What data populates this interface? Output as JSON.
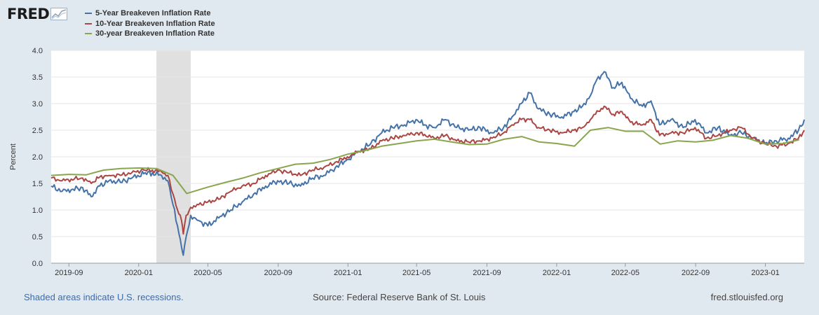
{
  "header": {
    "logo_text": "FRED",
    "logo_icon": "fred-graph-icon"
  },
  "colors": {
    "background": "#e1e9f0",
    "plot_background": "#ffffff",
    "grid": "#e6e6e6",
    "recession": "#e0e0e0",
    "series_5yr": "#4572a7",
    "series_10yr": "#aa4643",
    "series_30yr": "#89a54e"
  },
  "footer": {
    "recession_note": "Shaded areas indicate U.S. recessions.",
    "source": "Source: Federal Reserve Bank of St. Louis",
    "site": "fred.stlouisfed.org"
  },
  "chart_data": {
    "type": "line",
    "ylabel": "Percent",
    "ylim": [
      0,
      4
    ],
    "yticks": [
      "0.0",
      "0.5",
      "1.0",
      "1.5",
      "2.0",
      "2.5",
      "3.0",
      "3.5",
      "4.0"
    ],
    "xlim": [
      "2019-08-01",
      "2023-03-10"
    ],
    "xticks": [
      {
        "date": "2019-09-01",
        "label": "2019-09"
      },
      {
        "date": "2020-01-01",
        "label": "2020-01"
      },
      {
        "date": "2020-05-01",
        "label": "2020-05"
      },
      {
        "date": "2020-09-01",
        "label": "2020-09"
      },
      {
        "date": "2021-01-01",
        "label": "2021-01"
      },
      {
        "date": "2021-05-01",
        "label": "2021-05"
      },
      {
        "date": "2021-09-01",
        "label": "2021-09"
      },
      {
        "date": "2022-01-01",
        "label": "2022-01"
      },
      {
        "date": "2022-05-01",
        "label": "2022-05"
      },
      {
        "date": "2022-09-01",
        "label": "2022-09"
      },
      {
        "date": "2023-01-01",
        "label": "2023-01"
      }
    ],
    "grid": true,
    "legend_position": "top-left",
    "recessions": [
      {
        "start": "2020-02-01",
        "end": "2020-04-01"
      }
    ],
    "series": [
      {
        "name": "5-Year Breakeven Inflation Rate",
        "color": "#4572a7",
        "x": [
          "2019-08-01",
          "2019-08-20",
          "2019-09-05",
          "2019-09-25",
          "2019-10-10",
          "2019-10-25",
          "2019-11-10",
          "2019-11-30",
          "2019-12-20",
          "2020-01-10",
          "2020-01-25",
          "2020-02-10",
          "2020-02-21",
          "2020-03-01",
          "2020-03-09",
          "2020-03-16",
          "2020-03-19",
          "2020-03-24",
          "2020-04-01",
          "2020-04-15",
          "2020-05-01",
          "2020-05-20",
          "2020-06-10",
          "2020-06-30",
          "2020-07-20",
          "2020-08-10",
          "2020-08-31",
          "2020-09-20",
          "2020-10-10",
          "2020-10-31",
          "2020-11-20",
          "2020-12-10",
          "2020-12-31",
          "2021-01-20",
          "2021-02-10",
          "2021-03-01",
          "2021-03-20",
          "2021-04-10",
          "2021-04-30",
          "2021-05-15",
          "2021-06-01",
          "2021-06-20",
          "2021-07-10",
          "2021-07-31",
          "2021-08-20",
          "2021-09-10",
          "2021-09-30",
          "2021-10-15",
          "2021-10-31",
          "2021-11-15",
          "2021-11-30",
          "2021-12-20",
          "2022-01-10",
          "2022-01-31",
          "2022-02-15",
          "2022-03-01",
          "2022-03-10",
          "2022-03-25",
          "2022-04-10",
          "2022-04-25",
          "2022-05-10",
          "2022-05-31",
          "2022-06-15",
          "2022-06-30",
          "2022-07-20",
          "2022-08-10",
          "2022-08-31",
          "2022-09-20",
          "2022-10-10",
          "2022-10-31",
          "2022-11-20",
          "2022-12-10",
          "2022-12-31",
          "2023-01-20",
          "2023-02-10",
          "2023-02-28",
          "2023-03-10"
        ],
        "values": [
          1.45,
          1.35,
          1.38,
          1.42,
          1.25,
          1.45,
          1.55,
          1.52,
          1.6,
          1.68,
          1.7,
          1.65,
          1.55,
          1.1,
          0.7,
          0.3,
          0.15,
          0.5,
          0.9,
          0.8,
          0.7,
          0.85,
          1.0,
          1.15,
          1.3,
          1.45,
          1.55,
          1.5,
          1.45,
          1.6,
          1.65,
          1.8,
          1.95,
          2.1,
          2.25,
          2.45,
          2.55,
          2.6,
          2.7,
          2.6,
          2.55,
          2.7,
          2.55,
          2.5,
          2.55,
          2.45,
          2.55,
          2.75,
          3.0,
          3.2,
          2.9,
          2.8,
          2.75,
          2.85,
          2.95,
          3.15,
          3.4,
          3.6,
          3.3,
          3.4,
          3.1,
          2.95,
          3.05,
          2.6,
          2.7,
          2.55,
          2.7,
          2.45,
          2.55,
          2.4,
          2.45,
          2.35,
          2.25,
          2.3,
          2.35,
          2.5,
          2.7
        ]
      },
      {
        "name": "10-Year Breakeven Inflation Rate",
        "color": "#aa4643",
        "x": [
          "2019-08-01",
          "2019-08-20",
          "2019-09-05",
          "2019-09-25",
          "2019-10-10",
          "2019-10-25",
          "2019-11-10",
          "2019-11-30",
          "2019-12-20",
          "2020-01-10",
          "2020-01-25",
          "2020-02-10",
          "2020-02-21",
          "2020-03-01",
          "2020-03-09",
          "2020-03-16",
          "2020-03-19",
          "2020-03-24",
          "2020-04-01",
          "2020-04-15",
          "2020-05-01",
          "2020-05-20",
          "2020-06-10",
          "2020-06-30",
          "2020-07-20",
          "2020-08-10",
          "2020-08-31",
          "2020-09-20",
          "2020-10-10",
          "2020-10-31",
          "2020-11-20",
          "2020-12-10",
          "2020-12-31",
          "2021-01-20",
          "2021-02-10",
          "2021-03-01",
          "2021-03-20",
          "2021-04-10",
          "2021-04-30",
          "2021-05-15",
          "2021-06-01",
          "2021-06-20",
          "2021-07-10",
          "2021-07-31",
          "2021-08-20",
          "2021-09-10",
          "2021-09-30",
          "2021-10-15",
          "2021-10-31",
          "2021-11-15",
          "2021-11-30",
          "2021-12-20",
          "2022-01-10",
          "2022-01-31",
          "2022-02-15",
          "2022-03-01",
          "2022-03-10",
          "2022-03-25",
          "2022-04-10",
          "2022-04-25",
          "2022-05-10",
          "2022-05-31",
          "2022-06-15",
          "2022-06-30",
          "2022-07-20",
          "2022-08-10",
          "2022-08-31",
          "2022-09-20",
          "2022-10-10",
          "2022-10-31",
          "2022-11-20",
          "2022-12-10",
          "2022-12-31",
          "2023-01-20",
          "2023-02-10",
          "2023-02-28",
          "2023-03-10"
        ],
        "values": [
          1.6,
          1.55,
          1.58,
          1.6,
          1.5,
          1.62,
          1.65,
          1.65,
          1.7,
          1.75,
          1.75,
          1.72,
          1.65,
          1.3,
          1.0,
          0.8,
          0.55,
          0.9,
          1.05,
          1.1,
          1.15,
          1.2,
          1.35,
          1.45,
          1.5,
          1.65,
          1.75,
          1.7,
          1.65,
          1.75,
          1.8,
          1.9,
          2.0,
          2.1,
          2.15,
          2.3,
          2.35,
          2.4,
          2.45,
          2.42,
          2.35,
          2.4,
          2.3,
          2.28,
          2.3,
          2.35,
          2.45,
          2.6,
          2.7,
          2.7,
          2.55,
          2.5,
          2.45,
          2.5,
          2.55,
          2.7,
          2.8,
          2.95,
          2.8,
          2.85,
          2.65,
          2.6,
          2.7,
          2.4,
          2.45,
          2.45,
          2.55,
          2.35,
          2.4,
          2.5,
          2.55,
          2.35,
          2.25,
          2.2,
          2.25,
          2.35,
          2.5
        ]
      },
      {
        "name": "30-year Breakeven Inflation Rate",
        "color": "#89a54e",
        "x": [
          "2019-08-01",
          "2019-09-01",
          "2019-10-01",
          "2019-11-01",
          "2019-12-01",
          "2020-01-01",
          "2020-02-01",
          "2020-03-01",
          "2020-03-25",
          "2020-05-01",
          "2020-06-01",
          "2020-07-01",
          "2020-08-01",
          "2020-09-01",
          "2020-10-01",
          "2020-11-01",
          "2020-12-01",
          "2021-01-01",
          "2021-02-01",
          "2021-03-01",
          "2021-04-01",
          "2021-05-01",
          "2021-06-01",
          "2021-07-01",
          "2021-08-01",
          "2021-09-01",
          "2021-10-01",
          "2021-11-01",
          "2021-12-01",
          "2022-01-01",
          "2022-02-01",
          "2022-03-01",
          "2022-04-01",
          "2022-05-01",
          "2022-06-01",
          "2022-07-01",
          "2022-08-01",
          "2022-09-01",
          "2022-10-01",
          "2022-11-01",
          "2022-12-01",
          "2023-01-01",
          "2023-02-01",
          "2023-03-01"
        ],
        "values": [
          1.65,
          1.67,
          1.66,
          1.75,
          1.78,
          1.79,
          1.78,
          1.65,
          1.31,
          1.43,
          1.52,
          1.6,
          1.7,
          1.78,
          1.86,
          1.88,
          1.95,
          2.05,
          2.12,
          2.2,
          2.25,
          2.3,
          2.33,
          2.28,
          2.23,
          2.24,
          2.33,
          2.38,
          2.28,
          2.25,
          2.2,
          2.5,
          2.55,
          2.48,
          2.48,
          2.24,
          2.3,
          2.28,
          2.31,
          2.4,
          2.35,
          2.24,
          2.25,
          2.32
        ]
      }
    ]
  }
}
